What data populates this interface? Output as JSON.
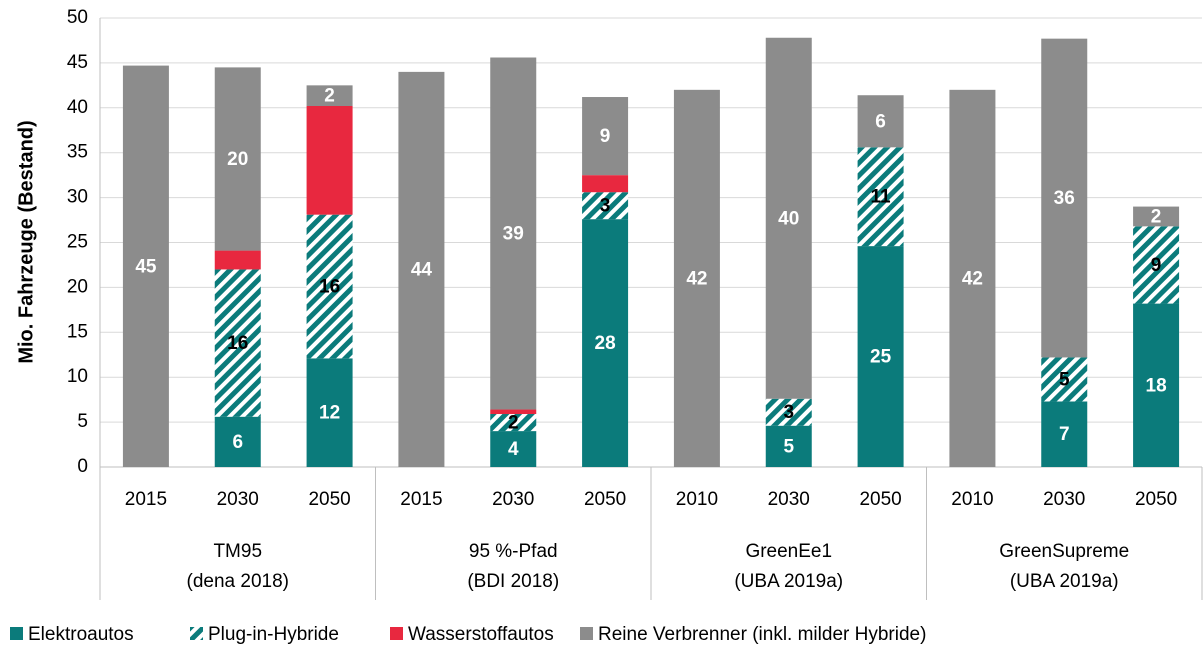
{
  "chart_data": {
    "type": "stacked-bar",
    "y_label": "Mio. Fahrzeuge (Bestand)",
    "categories": [
      "2015",
      "2030",
      "2050",
      "2015",
      "2030",
      "2050",
      "2010",
      "2030",
      "2050",
      "2010",
      "2030",
      "2050"
    ],
    "groups": [
      {
        "name": "TM95",
        "source": "(dena 2018)"
      },
      {
        "name": "95 %-Pfad",
        "source": "(BDI 2018)"
      },
      {
        "name": "GreenEe1",
        "source": "(UBA 2019a)"
      },
      {
        "name": "GreenSupreme",
        "source": "(UBA 2019a)"
      }
    ],
    "series": [
      {
        "name": "Elektroautos",
        "color": "#0b7b7b",
        "label_color": "#ffffff",
        "values": [
          0,
          5.6,
          12.1,
          0,
          4.0,
          27.6,
          0,
          4.6,
          24.6,
          0,
          7.3,
          18.2
        ],
        "value_labels": [
          null,
          "6",
          "12",
          null,
          "4",
          "28",
          null,
          "5",
          "25",
          null,
          "7",
          "18"
        ]
      },
      {
        "name": "Plug-in-Hybride",
        "color": "#0b7b7b",
        "pattern": "hatch",
        "label_color": "#000000",
        "values": [
          0,
          16.4,
          16.0,
          0,
          1.9,
          3.0,
          0,
          3.0,
          11.0,
          0,
          4.9,
          8.6
        ],
        "value_labels": [
          null,
          "16",
          "16",
          null,
          "2",
          "3",
          null,
          "3",
          "11",
          null,
          "5",
          "9"
        ]
      },
      {
        "name": "Wasserstoffautos",
        "color": "#e8283f",
        "label_color": "#ffffff",
        "values": [
          0,
          2.1,
          12.1,
          0,
          0.5,
          1.9,
          0,
          0,
          0,
          0,
          0,
          0
        ],
        "value_labels": [
          null,
          null,
          null,
          null,
          null,
          null,
          null,
          null,
          null,
          null,
          null,
          null
        ]
      },
      {
        "name": "Reine Verbrenner (inkl. milder Hybride)",
        "color": "#8c8c8c",
        "label_color": "#ffffff",
        "values": [
          44.7,
          20.4,
          2.3,
          44.0,
          39.2,
          8.7,
          42.0,
          40.2,
          5.8,
          42.0,
          35.5,
          2.2
        ],
        "value_labels": [
          "45",
          "20",
          "2",
          "44",
          "39",
          "9",
          "42",
          "40",
          "6",
          "42",
          "36",
          "2"
        ]
      }
    ],
    "ylim": [
      0,
      50
    ],
    "yticks": [
      0,
      5,
      10,
      15,
      20,
      25,
      30,
      35,
      40,
      45,
      50
    ],
    "grid": true
  }
}
